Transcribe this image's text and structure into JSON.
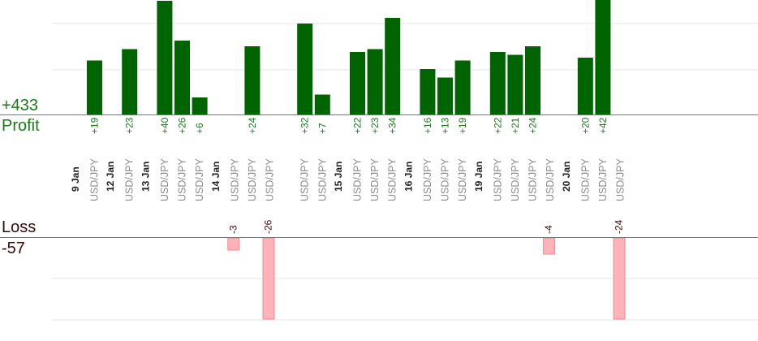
{
  "summary": {
    "profit_total": "+433",
    "profit_label": "Profit",
    "loss_label": "Loss",
    "loss_total": "-57"
  },
  "colors": {
    "profit_bar": "#006400",
    "profit_text": "#1a7a1a",
    "loss_bar": "#ffb3b8",
    "loss_bar_edge": "#f08a90",
    "loss_text": "#3a0a0a",
    "axis": "#777777",
    "grid": "#e6e6e6",
    "date_text": "#222222",
    "pair_text": "#8a8a8a"
  },
  "chart_data": {
    "type": "bar",
    "profit_scale_max": 44,
    "loss_scale_max": 20,
    "days": [
      {
        "date": "9 Jan",
        "trades": [
          {
            "pair": "USD/JPY",
            "value": 19
          }
        ]
      },
      {
        "date": "12 Jan",
        "trades": [
          {
            "pair": "USD/JPY",
            "value": 23
          }
        ]
      },
      {
        "date": "13 Jan",
        "trades": [
          {
            "pair": "USD/JPY",
            "value": 40
          },
          {
            "pair": "USD/JPY",
            "value": 26
          },
          {
            "pair": "USD/JPY",
            "value": 6
          }
        ]
      },
      {
        "date": "14 Jan",
        "trades": [
          {
            "pair": "USD/JPY",
            "value": -3
          },
          {
            "pair": "USD/JPY",
            "value": 24
          },
          {
            "pair": "USD/JPY",
            "value": -26
          }
        ]
      },
      {
        "date": "",
        "trades": [
          {
            "pair": "USD/JPY",
            "value": 32
          },
          {
            "pair": "USD/JPY",
            "value": 7
          }
        ]
      },
      {
        "date": "15 Jan",
        "trades": [
          {
            "pair": "USD/JPY",
            "value": 22
          },
          {
            "pair": "USD/JPY",
            "value": 23
          },
          {
            "pair": "USD/JPY",
            "value": 34
          }
        ]
      },
      {
        "date": "16 Jan",
        "trades": [
          {
            "pair": "USD/JPY",
            "value": 16
          },
          {
            "pair": "USD/JPY",
            "value": 13
          },
          {
            "pair": "USD/JPY",
            "value": 19
          }
        ]
      },
      {
        "date": "19 Jan",
        "trades": [
          {
            "pair": "USD/JPY",
            "value": 22
          },
          {
            "pair": "USD/JPY",
            "value": 21
          },
          {
            "pair": "USD/JPY",
            "value": 24
          },
          {
            "pair": "USD/JPY",
            "value": -4
          }
        ]
      },
      {
        "date": "20 Jan",
        "trades": [
          {
            "pair": "USD/JPY",
            "value": 20
          },
          {
            "pair": "USD/JPY",
            "value": 42
          },
          {
            "pair": "USD/JPY",
            "value": -24
          }
        ]
      }
    ]
  }
}
